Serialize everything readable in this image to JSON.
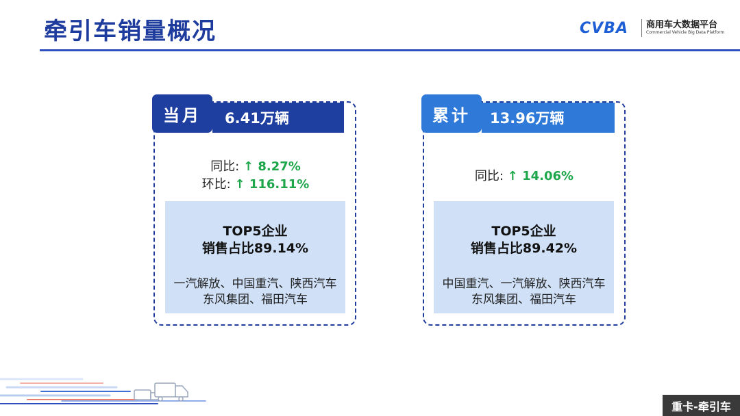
{
  "header": {
    "title": "牵引车销量概况",
    "logo_mark": "CVBA",
    "logo_name_cn": "商用车大数据平台",
    "logo_name_en": "Commercial Vehicle Big Data Platform"
  },
  "monthly": {
    "tag": "当月",
    "value": "6.41万辆",
    "yoy_label": "同比:",
    "yoy_value": "↑ 8.27%",
    "mom_label": "环比:",
    "mom_value": "↑ 116.11%",
    "top5_line1": "TOP5企业",
    "top5_line2": "销售占比89.14%",
    "companies_line1": "一汽解放、中国重汽、陕西汽车",
    "companies_line2": "东风集团、福田汽车"
  },
  "cumulative": {
    "tag": "累计",
    "value": "13.96万辆",
    "yoy_label": "同比:",
    "yoy_value": "↑ 14.06%",
    "top5_line1": "TOP5企业",
    "top5_line2": "销售占比89.42%",
    "companies_line1": "中国重汽、一汽解放、陕西汽车",
    "companies_line2": "东风集团、福田汽车"
  },
  "footer": {
    "badge": "重卡-牵引车"
  },
  "colors": {
    "title_blue": "#1e3c9e",
    "monthly_blue": "#1e3ea0",
    "cumulative_blue": "#2f7ad8",
    "panel_bg": "#cfe0f7",
    "up_green": "#1ea64b"
  }
}
